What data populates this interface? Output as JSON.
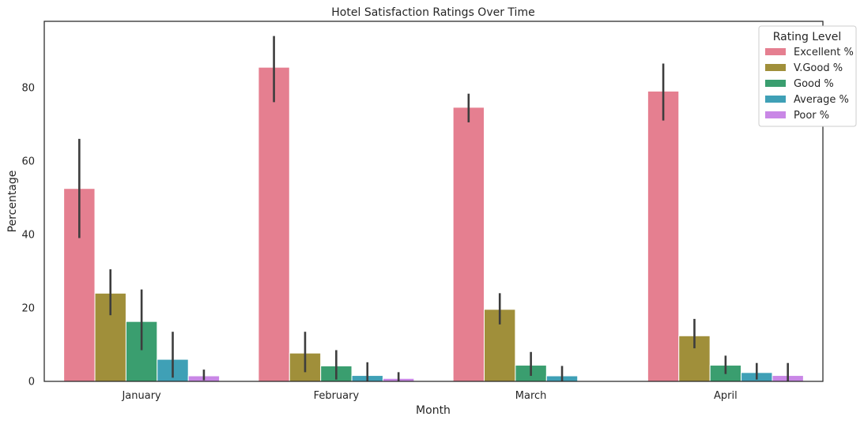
{
  "chart_data": {
    "type": "bar",
    "title": "Hotel Satisfaction Ratings Over Time",
    "xlabel": "Month",
    "ylabel": "Percentage",
    "categories": [
      "January",
      "February",
      "March",
      "April"
    ],
    "ylim": [
      0,
      98
    ],
    "yticks": [
      0,
      20,
      40,
      60,
      80
    ],
    "grid": false,
    "legend": {
      "title": "Rating Level",
      "placement": "top-right"
    },
    "series": [
      {
        "name": "Excellent %",
        "color": "#e57f90",
        "values": [
          52.5,
          85.5,
          74.6,
          79.0
        ],
        "err_low": [
          39,
          76,
          70.5,
          71
        ],
        "err_high": [
          66,
          94,
          78.3,
          86.5
        ]
      },
      {
        "name": "V.Good %",
        "color": "#a08f3a",
        "values": [
          24.0,
          7.7,
          19.6,
          12.4
        ],
        "err_low": [
          18,
          2.5,
          15.5,
          9
        ],
        "err_high": [
          30.5,
          13.5,
          24,
          17
        ]
      },
      {
        "name": "Good %",
        "color": "#3a9e6f",
        "values": [
          16.3,
          4.2,
          4.4,
          4.4
        ],
        "err_low": [
          8.5,
          0.5,
          1.5,
          2
        ],
        "err_high": [
          25,
          8.5,
          8,
          7
        ]
      },
      {
        "name": "Average %",
        "color": "#3fa0b6",
        "values": [
          6.0,
          1.6,
          1.5,
          2.4
        ],
        "err_low": [
          1,
          0,
          0,
          0.5
        ],
        "err_high": [
          13.5,
          5.2,
          4.2,
          5
        ]
      },
      {
        "name": "Poor %",
        "color": "#c987e6",
        "values": [
          1.5,
          0.8,
          0,
          1.6
        ],
        "err_low": [
          0.3,
          0,
          0,
          0
        ],
        "err_high": [
          3.2,
          2.5,
          0,
          5
        ]
      }
    ]
  }
}
